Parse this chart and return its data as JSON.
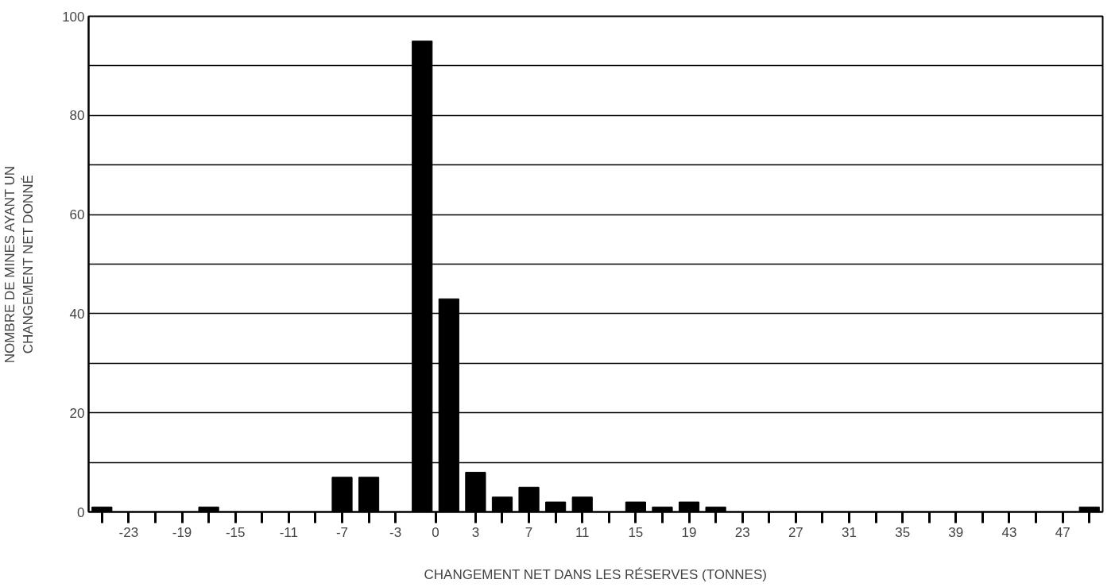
{
  "chart_data": {
    "type": "bar",
    "xlabel": "CHANGEMENT NET DANS LES RÉSERVES (TONNES)",
    "ylabel": "NOMBRE DE MINES AYANT UN\nCHANGEMENT NET DONNÉ",
    "x": [
      -25,
      -23,
      -21,
      -19,
      -17,
      -15,
      -13,
      -11,
      -9,
      -7,
      -5,
      -3,
      -1,
      1,
      3,
      5,
      7,
      9,
      11,
      13,
      15,
      17,
      19,
      21,
      23,
      25,
      27,
      29,
      31,
      33,
      35,
      37,
      39,
      41,
      43,
      45,
      47,
      49
    ],
    "values": [
      1,
      0,
      0,
      0,
      1,
      0,
      0,
      0,
      0,
      7,
      7,
      0,
      95,
      43,
      8,
      3,
      5,
      2,
      3,
      0,
      2,
      1,
      2,
      1,
      0,
      0,
      0,
      0,
      0,
      0,
      0,
      0,
      0,
      0,
      0,
      0,
      0,
      1
    ],
    "color": "#000000",
    "xlim": [
      -26,
      50
    ],
    "xticks": [
      {
        "value": -25,
        "label": null
      },
      -23,
      {
        "value": -21,
        "label": null
      },
      -19,
      {
        "value": -17,
        "label": null
      },
      -15,
      {
        "value": -13,
        "label": null
      },
      -11,
      {
        "value": -9,
        "label": null
      },
      -7,
      {
        "value": -5,
        "label": null
      },
      -3,
      0,
      3,
      {
        "value": 5,
        "label": null
      },
      7,
      {
        "value": 9,
        "label": null
      },
      11,
      {
        "value": 13,
        "label": null
      },
      15,
      {
        "value": 17,
        "label": null
      },
      19,
      {
        "value": 21,
        "label": null
      },
      23,
      {
        "value": 25,
        "label": null
      },
      27,
      {
        "value": 29,
        "label": null
      },
      31,
      {
        "value": 33,
        "label": null
      },
      35,
      {
        "value": 37,
        "label": null
      },
      39,
      {
        "value": 41,
        "label": null
      },
      43,
      {
        "value": 45,
        "label": null
      },
      47,
      {
        "value": 49,
        "label": null
      }
    ],
    "ylim": [
      0,
      100
    ],
    "yticks": [
      0,
      {
        "value": 10,
        "label": null
      },
      20,
      {
        "value": 30,
        "label": null
      },
      40,
      {
        "value": 50,
        "label": null
      },
      60,
      {
        "value": 70,
        "label": null
      },
      80,
      {
        "value": 90,
        "label": null
      },
      100
    ],
    "grid": "y"
  }
}
